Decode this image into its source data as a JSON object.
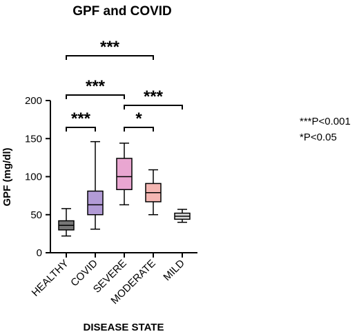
{
  "chart_data": {
    "type": "box",
    "title": "GPF and COVID",
    "xlabel": "DISEASE STATE",
    "ylabel": "GPF (mg/dl)",
    "ylim": [
      0,
      200
    ],
    "yticks": [
      "0",
      "50",
      "100",
      "150",
      "200"
    ],
    "categories": [
      "HEALTHY",
      "COVID",
      "SEVERE",
      "MODERATE",
      "MILD"
    ],
    "boxes": [
      {
        "name": "HEALTHY",
        "min": 22,
        "q1": 30,
        "median": 36,
        "q3": 42,
        "max": 58,
        "color": "#777777"
      },
      {
        "name": "COVID",
        "min": 31,
        "q1": 50,
        "median": 63,
        "q3": 81,
        "max": 146,
        "color": "#b29bd6"
      },
      {
        "name": "SEVERE",
        "min": 63,
        "q1": 83,
        "median": 100,
        "q3": 124,
        "max": 144,
        "color": "#e9a6d1"
      },
      {
        "name": "MODERATE",
        "min": 50,
        "q1": 67,
        "median": 79,
        "q3": 91,
        "max": 109,
        "color": "#f4b6b2"
      },
      {
        "name": "MILD",
        "min": 40,
        "q1": 44,
        "median": 48,
        "q3": 52,
        "max": 57,
        "color": "#d9d9d9"
      }
    ],
    "comparisons": [
      {
        "from": 0,
        "to": 1,
        "label": "***",
        "level": 1
      },
      {
        "from": 2,
        "to": 3,
        "label": "*",
        "level": 1
      },
      {
        "from": 2,
        "to": 4,
        "label": "***",
        "level": 2
      },
      {
        "from": 0,
        "to": 2,
        "label": "***",
        "level": 3
      },
      {
        "from": 0,
        "to": 3,
        "label": "***",
        "level": 4
      }
    ],
    "legend": [
      "***P<0.001",
      "*P<0.05"
    ],
    "grid": false
  }
}
